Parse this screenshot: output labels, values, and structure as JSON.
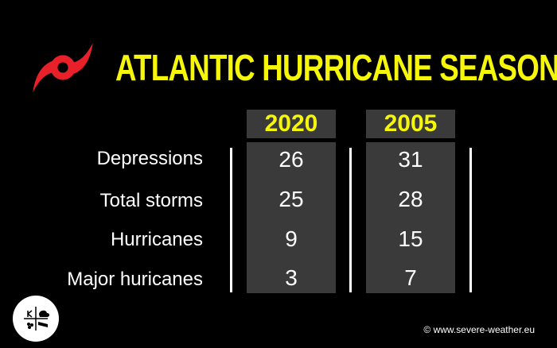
{
  "title": "ATLANTIC HURRICANE SEASON",
  "columns": [
    "2020",
    "2005"
  ],
  "rows": [
    {
      "label": "Depressions",
      "v2020": "26",
      "v2005": "31"
    },
    {
      "label": "Total storms",
      "v2020": "25",
      "v2005": "28"
    },
    {
      "label": "Hurricanes",
      "v2020": "9",
      "v2005": "15"
    },
    {
      "label": "Major huricanes",
      "v2020": "3",
      "v2005": "7"
    }
  ],
  "copyright": "© www.severe-weather.eu",
  "colors": {
    "accent": "#f6f60a",
    "logo": "#e8202a",
    "cell_bg": "#3a3a3a"
  },
  "icons": {
    "logo": "hurricane-symbol-icon",
    "badge": "severe-weather-badge-icon"
  }
}
